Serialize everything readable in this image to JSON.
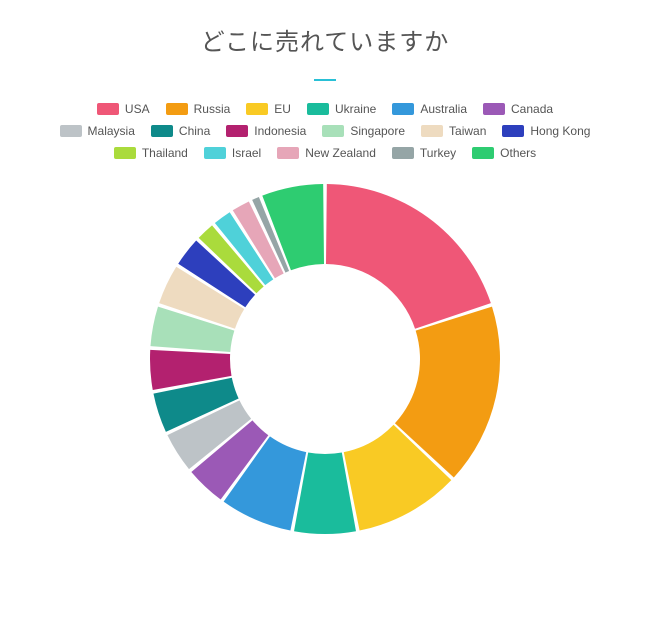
{
  "title": "どこに売れていますか",
  "underline_color": "#29c0d6",
  "chart": {
    "type": "donut",
    "background": "#ffffff",
    "legend_text_color": "#555555",
    "title_color": "#555555",
    "title_fontsize": 24,
    "legend_fontsize": 12,
    "outer_radius": 175,
    "inner_radius": 95,
    "slice_gap_deg": 1.2,
    "series": [
      {
        "label": "USA",
        "value": 20,
        "color": "#ef5777"
      },
      {
        "label": "Russia",
        "value": 17,
        "color": "#f39c12"
      },
      {
        "label": "EU",
        "value": 10,
        "color": "#f9ca24"
      },
      {
        "label": "Ukraine",
        "value": 6,
        "color": "#1abc9c"
      },
      {
        "label": "Australia",
        "value": 7,
        "color": "#3498db"
      },
      {
        "label": "Canada",
        "value": 4,
        "color": "#9b59b6"
      },
      {
        "label": "Malaysia",
        "value": 4,
        "color": "#bdc3c7"
      },
      {
        "label": "China",
        "value": 4,
        "color": "#0e8a8a"
      },
      {
        "label": "Indonesia",
        "value": 4,
        "color": "#b3216f"
      },
      {
        "label": "Singapore",
        "value": 4,
        "color": "#a8e0b9"
      },
      {
        "label": "Taiwan",
        "value": 4,
        "color": "#eedbc0"
      },
      {
        "label": "Hong Kong",
        "value": 3,
        "color": "#2d3fbd"
      },
      {
        "label": "Thailand",
        "value": 2,
        "color": "#aadb3c"
      },
      {
        "label": "Israel",
        "value": 2,
        "color": "#4fd1d9"
      },
      {
        "label": "New Zealand",
        "value": 2,
        "color": "#e6a6b8"
      },
      {
        "label": "Turkey",
        "value": 1,
        "color": "#95a5a6"
      },
      {
        "label": "Others",
        "value": 6,
        "color": "#2ecc71"
      }
    ]
  }
}
